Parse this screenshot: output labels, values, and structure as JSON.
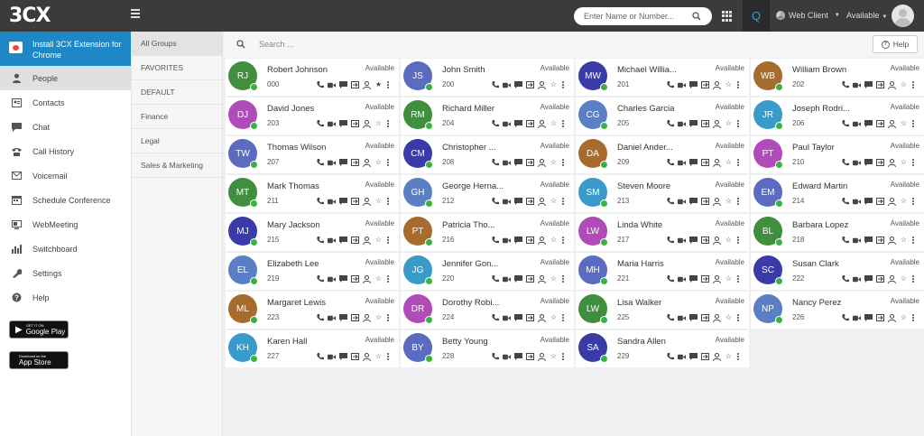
{
  "app": {
    "logo_text": "3CX"
  },
  "header": {
    "search_placeholder": "Enter Name or Number...",
    "q_label": "Q",
    "client_label": "Web Client",
    "status_label": "Available"
  },
  "sidebar": {
    "install_text": "Install 3CX Extension for Chrome",
    "items": [
      {
        "label": "People",
        "icon": "person-icon"
      },
      {
        "label": "Contacts",
        "icon": "contact-card-icon"
      },
      {
        "label": "Chat",
        "icon": "chat-bubble-icon"
      },
      {
        "label": "Call History",
        "icon": "phone-history-icon"
      },
      {
        "label": "Voicemail",
        "icon": "voicemail-icon"
      },
      {
        "label": "Schedule Conference",
        "icon": "calendar-icon"
      },
      {
        "label": "WebMeeting",
        "icon": "webmeeting-icon"
      },
      {
        "label": "Switchboard",
        "icon": "bar-chart-icon"
      },
      {
        "label": "Settings",
        "icon": "wrench-icon"
      },
      {
        "label": "Help",
        "icon": "help-icon"
      }
    ],
    "google_play": {
      "small": "GET IT ON",
      "big": "Google Play"
    },
    "app_store": {
      "small": "Download on the",
      "big": "App Store"
    }
  },
  "groups": [
    "All Groups",
    "FAVORITES",
    "DEFAULT",
    "Finance",
    "Legal",
    "Sales & Marketing"
  ],
  "main": {
    "search_placeholder": "Search ...",
    "help_label": "Help"
  },
  "contacts": [
    {
      "initials": "RJ",
      "name": "Robert Johnson",
      "ext": "000",
      "status": "Available",
      "color": "#3f8f3f",
      "fav": true
    },
    {
      "initials": "JS",
      "name": "John Smith",
      "ext": "200",
      "status": "Available",
      "color": "#5b6bbf"
    },
    {
      "initials": "MW",
      "name": "Michael Willia...",
      "ext": "201",
      "status": "Available",
      "color": "#3a3aa8"
    },
    {
      "initials": "WB",
      "name": "William Brown",
      "ext": "202",
      "status": "Available",
      "color": "#a66c2d"
    },
    {
      "initials": "DJ",
      "name": "David Jones",
      "ext": "203",
      "status": "Available",
      "color": "#b04cb8"
    },
    {
      "initials": "RM",
      "name": "Richard Miller",
      "ext": "204",
      "status": "Available",
      "color": "#3f8f3f"
    },
    {
      "initials": "CG",
      "name": "Charles Garcia",
      "ext": "205",
      "status": "Available",
      "color": "#5b7fc4"
    },
    {
      "initials": "JR",
      "name": "Joseph Rodri...",
      "ext": "206",
      "status": "Available",
      "color": "#3a9ac9"
    },
    {
      "initials": "TW",
      "name": "Thomas Wilson",
      "ext": "207",
      "status": "Available",
      "color": "#5b6bbf"
    },
    {
      "initials": "CM",
      "name": "Christopher ...",
      "ext": "208",
      "status": "Available",
      "color": "#3a3aa8"
    },
    {
      "initials": "DA",
      "name": "Daniel Ander...",
      "ext": "209",
      "status": "Available",
      "color": "#a66c2d"
    },
    {
      "initials": "PT",
      "name": "Paul Taylor",
      "ext": "210",
      "status": "Available",
      "color": "#b04cb8"
    },
    {
      "initials": "MT",
      "name": "Mark Thomas",
      "ext": "211",
      "status": "Available",
      "color": "#3f8f3f"
    },
    {
      "initials": "GH",
      "name": "George Herna...",
      "ext": "212",
      "status": "Available",
      "color": "#5b7fc4"
    },
    {
      "initials": "SM",
      "name": "Steven Moore",
      "ext": "213",
      "status": "Available",
      "color": "#3a9ac9"
    },
    {
      "initials": "EM",
      "name": "Edward Martin",
      "ext": "214",
      "status": "Available",
      "color": "#5b6bbf"
    },
    {
      "initials": "MJ",
      "name": "Mary Jackson",
      "ext": "215",
      "status": "Available",
      "color": "#3a3aa8"
    },
    {
      "initials": "PT",
      "name": "Patricia Tho...",
      "ext": "216",
      "status": "Available",
      "color": "#a66c2d"
    },
    {
      "initials": "LW",
      "name": "Linda White",
      "ext": "217",
      "status": "Available",
      "color": "#b04cb8"
    },
    {
      "initials": "BL",
      "name": "Barbara Lopez",
      "ext": "218",
      "status": "Available",
      "color": "#3f8f3f"
    },
    {
      "initials": "EL",
      "name": "Elizabeth Lee",
      "ext": "219",
      "status": "Available",
      "color": "#5b7fc4"
    },
    {
      "initials": "JG",
      "name": "Jennifer Gon...",
      "ext": "220",
      "status": "Available",
      "color": "#3a9ac9"
    },
    {
      "initials": "MH",
      "name": "Maria Harris",
      "ext": "221",
      "status": "Available",
      "color": "#5b6bbf"
    },
    {
      "initials": "SC",
      "name": "Susan Clark",
      "ext": "222",
      "status": "Available",
      "color": "#3a3aa8"
    },
    {
      "initials": "ML",
      "name": "Margaret Lewis",
      "ext": "223",
      "status": "Available",
      "color": "#a66c2d"
    },
    {
      "initials": "DR",
      "name": "Dorothy Robi...",
      "ext": "224",
      "status": "Available",
      "color": "#b04cb8"
    },
    {
      "initials": "LW",
      "name": "Lisa Walker",
      "ext": "225",
      "status": "Available",
      "color": "#3f8f3f"
    },
    {
      "initials": "NP",
      "name": "Nancy Perez",
      "ext": "226",
      "status": "Available",
      "color": "#5b7fc4"
    },
    {
      "initials": "KH",
      "name": "Karen Hall",
      "ext": "227",
      "status": "Available",
      "color": "#3a9ac9"
    },
    {
      "initials": "BY",
      "name": "Betty Young",
      "ext": "228",
      "status": "Available",
      "color": "#5b6bbf"
    },
    {
      "initials": "SA",
      "name": "Sandra Allen",
      "ext": "229",
      "status": "Available",
      "color": "#3a3aa8"
    }
  ],
  "colors": {
    "accent": "#1e88c7",
    "topbar": "#3b3b3b",
    "online": "#3cb043"
  }
}
